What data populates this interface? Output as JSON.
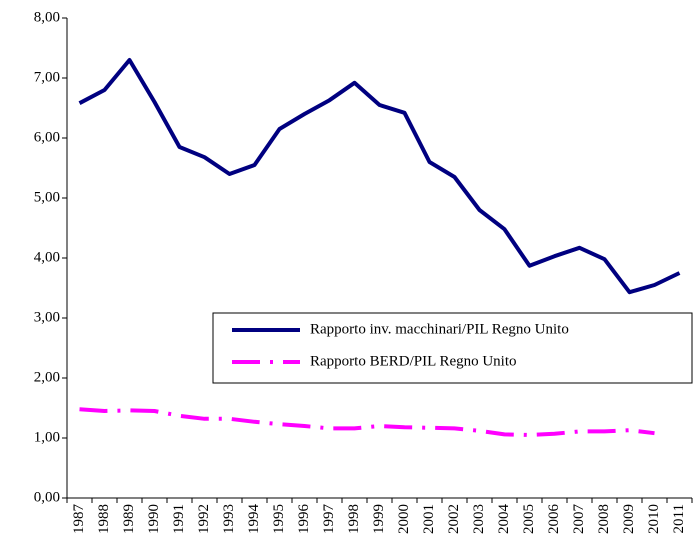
{
  "chart_data": {
    "type": "line",
    "categories": [
      "1987",
      "1988",
      "1989",
      "1990",
      "1991",
      "1992",
      "1993",
      "1994",
      "1995",
      "1996",
      "1997",
      "1998",
      "1999",
      "2000",
      "2001",
      "2002",
      "2003",
      "2004",
      "2005",
      "2006",
      "2007",
      "2008",
      "2009",
      "2010",
      "2011"
    ],
    "series": [
      {
        "name": "Rapporto inv. macchinari/PIL Regno Unito",
        "color": "#000080",
        "style": "solid",
        "values": [
          6.58,
          6.8,
          7.3,
          6.6,
          5.85,
          5.68,
          5.4,
          5.55,
          6.15,
          6.4,
          6.63,
          6.92,
          6.55,
          6.42,
          5.6,
          5.35,
          4.8,
          4.48,
          3.87,
          4.03,
          4.17,
          3.98,
          3.43,
          3.55,
          3.75
        ]
      },
      {
        "name": "Rapporto BERD/PIL Regno Unito",
        "color": "#ff00ff",
        "style": "dashdot",
        "values": [
          1.48,
          1.45,
          1.46,
          1.45,
          1.37,
          1.32,
          1.32,
          1.27,
          1.23,
          1.2,
          1.16,
          1.16,
          1.2,
          1.18,
          1.17,
          1.16,
          1.12,
          1.06,
          1.05,
          1.07,
          1.11,
          1.11,
          1.13,
          1.08,
          null
        ]
      }
    ],
    "ylim": [
      0,
      8
    ],
    "yticks": [
      {
        "value": 0,
        "label": "0,00"
      },
      {
        "value": 1,
        "label": "1,00"
      },
      {
        "value": 2,
        "label": "2,00"
      },
      {
        "value": 3,
        "label": "3,00"
      },
      {
        "value": 4,
        "label": "4,00"
      },
      {
        "value": 5,
        "label": "5,00"
      },
      {
        "value": 6,
        "label": "6,00"
      },
      {
        "value": 7,
        "label": "7,00"
      },
      {
        "value": 8,
        "label": "8,00"
      }
    ],
    "grid": false,
    "legend": "right"
  }
}
